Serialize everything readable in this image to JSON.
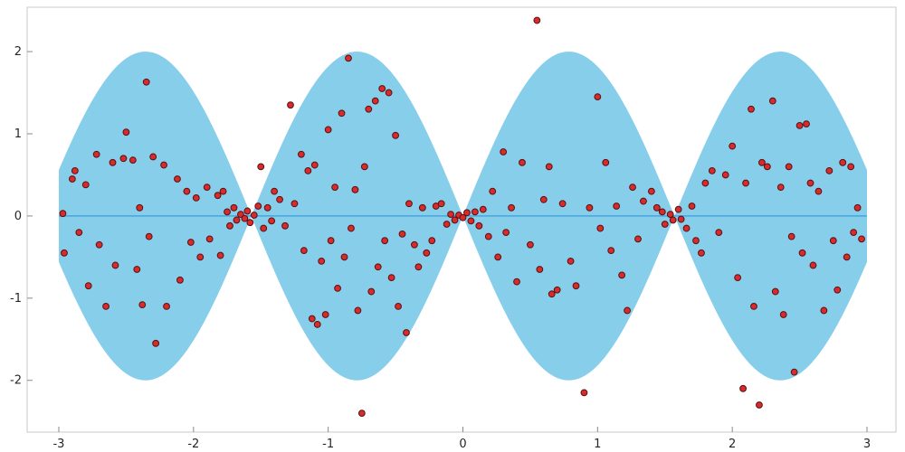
{
  "chart_data": {
    "type": "scatter",
    "title": "",
    "xlabel": "",
    "ylabel": "",
    "xlim": [
      -3.235,
      3.215
    ],
    "ylim": [
      -2.63,
      2.54
    ],
    "x_ticks": [
      "-3",
      "-2",
      "-1",
      "0",
      "1",
      "2",
      "3"
    ],
    "x_tick_values": [
      -3,
      -2,
      -1,
      0,
      1,
      2,
      3
    ],
    "y_ticks": [
      "-2",
      "-1",
      "0",
      "1",
      "2"
    ],
    "y_tick_values": [
      -2,
      -1,
      0,
      1,
      2
    ],
    "grid": false,
    "legend": "none",
    "ribbon": {
      "description": "filled band y = ±amplitude*|sin(frequency*x)| around y=0, x from -3 to 3",
      "amplitude": 2,
      "frequency": 2,
      "x_range": [
        -3,
        3
      ],
      "fill_color": "#87CEEB"
    },
    "center_line": {
      "y": 0,
      "x_range": [
        -3,
        3
      ],
      "color": "#47A4DE",
      "width": 1.5
    },
    "point_style": {
      "fill": "#D92B2B",
      "stroke": "#571111",
      "radius": 3.4
    },
    "frame_color": "#c9c9c9",
    "tick_color": "#8a8a8a",
    "points": [
      [
        -2.97,
        0.03
      ],
      [
        -2.96,
        -0.45
      ],
      [
        -2.9,
        0.45
      ],
      [
        -2.88,
        0.55
      ],
      [
        -2.85,
        -0.2
      ],
      [
        -2.8,
        0.38
      ],
      [
        -2.78,
        -0.85
      ],
      [
        -2.72,
        0.75
      ],
      [
        -2.7,
        -0.35
      ],
      [
        -2.65,
        -1.1
      ],
      [
        -2.6,
        0.65
      ],
      [
        -2.58,
        -0.6
      ],
      [
        -2.52,
        0.7
      ],
      [
        -2.5,
        1.02
      ],
      [
        -2.45,
        0.68
      ],
      [
        -2.42,
        -0.65
      ],
      [
        -2.4,
        0.1
      ],
      [
        -2.38,
        -1.08
      ],
      [
        -2.35,
        1.63
      ],
      [
        -2.33,
        -0.25
      ],
      [
        -2.3,
        0.72
      ],
      [
        -2.28,
        -1.55
      ],
      [
        -2.22,
        0.62
      ],
      [
        -2.2,
        -1.1
      ],
      [
        -2.12,
        0.45
      ],
      [
        -2.1,
        -0.78
      ],
      [
        -2.05,
        0.3
      ],
      [
        -2.02,
        -0.32
      ],
      [
        -1.98,
        0.22
      ],
      [
        -1.95,
        -0.5
      ],
      [
        -1.9,
        0.35
      ],
      [
        -1.88,
        -0.28
      ],
      [
        -1.82,
        0.25
      ],
      [
        -1.8,
        -0.48
      ],
      [
        -1.78,
        0.3
      ],
      [
        -1.75,
        0.05
      ],
      [
        -1.73,
        -0.12
      ],
      [
        -1.7,
        0.1
      ],
      [
        -1.68,
        -0.05
      ],
      [
        -1.65,
        0.02
      ],
      [
        -1.62,
        -0.03
      ],
      [
        -1.6,
        0.06
      ],
      [
        -1.58,
        -0.08
      ],
      [
        -1.55,
        0.01
      ],
      [
        -1.52,
        0.12
      ],
      [
        -1.5,
        0.6
      ],
      [
        -1.48,
        -0.15
      ],
      [
        -1.45,
        0.1
      ],
      [
        -1.42,
        -0.06
      ],
      [
        -1.4,
        0.3
      ],
      [
        -1.36,
        0.2
      ],
      [
        -1.32,
        -0.12
      ],
      [
        -1.28,
        1.35
      ],
      [
        -1.25,
        0.15
      ],
      [
        -1.2,
        0.75
      ],
      [
        -1.18,
        -0.42
      ],
      [
        -1.15,
        0.55
      ],
      [
        -1.12,
        -1.25
      ],
      [
        -1.1,
        0.62
      ],
      [
        -1.08,
        -1.32
      ],
      [
        -1.05,
        -0.55
      ],
      [
        -1.02,
        -1.2
      ],
      [
        -1.0,
        1.05
      ],
      [
        -0.98,
        -0.3
      ],
      [
        -0.95,
        0.35
      ],
      [
        -0.93,
        -0.88
      ],
      [
        -0.9,
        1.25
      ],
      [
        -0.88,
        -0.5
      ],
      [
        -0.85,
        1.92
      ],
      [
        -0.83,
        -0.15
      ],
      [
        -0.8,
        0.32
      ],
      [
        -0.78,
        -1.15
      ],
      [
        -0.75,
        -2.4
      ],
      [
        -0.73,
        0.6
      ],
      [
        -0.7,
        1.3
      ],
      [
        -0.68,
        -0.92
      ],
      [
        -0.65,
        1.4
      ],
      [
        -0.63,
        -0.62
      ],
      [
        -0.6,
        1.55
      ],
      [
        -0.58,
        -0.3
      ],
      [
        -0.55,
        1.5
      ],
      [
        -0.53,
        -0.75
      ],
      [
        -0.5,
        0.98
      ],
      [
        -0.48,
        -1.1
      ],
      [
        -0.45,
        -0.22
      ],
      [
        -0.42,
        -1.42
      ],
      [
        -0.4,
        0.15
      ],
      [
        -0.36,
        -0.35
      ],
      [
        -0.33,
        -0.62
      ],
      [
        -0.3,
        0.1
      ],
      [
        -0.27,
        -0.45
      ],
      [
        -0.23,
        -0.3
      ],
      [
        -0.2,
        0.12
      ],
      [
        -0.16,
        0.15
      ],
      [
        -0.12,
        -0.1
      ],
      [
        -0.09,
        0.02
      ],
      [
        -0.06,
        -0.05
      ],
      [
        -0.03,
        0.01
      ],
      [
        0.0,
        -0.02
      ],
      [
        0.03,
        0.04
      ],
      [
        0.06,
        -0.06
      ],
      [
        0.09,
        0.05
      ],
      [
        0.12,
        -0.12
      ],
      [
        0.15,
        0.08
      ],
      [
        0.19,
        -0.25
      ],
      [
        0.22,
        0.3
      ],
      [
        0.26,
        -0.5
      ],
      [
        0.3,
        0.78
      ],
      [
        0.32,
        -0.2
      ],
      [
        0.36,
        0.1
      ],
      [
        0.4,
        -0.8
      ],
      [
        0.44,
        0.65
      ],
      [
        0.5,
        -0.35
      ],
      [
        0.55,
        2.38
      ],
      [
        0.57,
        -0.65
      ],
      [
        0.6,
        0.2
      ],
      [
        0.64,
        0.6
      ],
      [
        0.66,
        -0.95
      ],
      [
        0.7,
        -0.9
      ],
      [
        0.74,
        0.15
      ],
      [
        0.8,
        -0.55
      ],
      [
        0.84,
        -0.85
      ],
      [
        0.9,
        -2.15
      ],
      [
        0.94,
        0.1
      ],
      [
        1.0,
        1.45
      ],
      [
        1.02,
        -0.15
      ],
      [
        1.06,
        0.65
      ],
      [
        1.1,
        -0.42
      ],
      [
        1.14,
        0.12
      ],
      [
        1.18,
        -0.72
      ],
      [
        1.22,
        -1.15
      ],
      [
        1.26,
        0.35
      ],
      [
        1.3,
        -0.28
      ],
      [
        1.34,
        0.18
      ],
      [
        1.4,
        0.3
      ],
      [
        1.44,
        0.1
      ],
      [
        1.48,
        0.05
      ],
      [
        1.5,
        -0.1
      ],
      [
        1.54,
        0.02
      ],
      [
        1.56,
        -0.05
      ],
      [
        1.6,
        0.08
      ],
      [
        1.62,
        -0.04
      ],
      [
        1.66,
        -0.15
      ],
      [
        1.7,
        0.12
      ],
      [
        1.73,
        -0.3
      ],
      [
        1.77,
        -0.45
      ],
      [
        1.8,
        0.4
      ],
      [
        1.85,
        0.55
      ],
      [
        1.9,
        -0.2
      ],
      [
        1.95,
        0.5
      ],
      [
        2.0,
        0.85
      ],
      [
        2.04,
        -0.75
      ],
      [
        2.08,
        -2.1
      ],
      [
        2.1,
        0.4
      ],
      [
        2.14,
        1.3
      ],
      [
        2.16,
        -1.1
      ],
      [
        2.2,
        -2.3
      ],
      [
        2.22,
        0.65
      ],
      [
        2.26,
        0.6
      ],
      [
        2.3,
        1.4
      ],
      [
        2.32,
        -0.92
      ],
      [
        2.36,
        0.35
      ],
      [
        2.38,
        -1.2
      ],
      [
        2.42,
        0.6
      ],
      [
        2.44,
        -0.25
      ],
      [
        2.46,
        -1.9
      ],
      [
        2.5,
        1.1
      ],
      [
        2.52,
        -0.45
      ],
      [
        2.55,
        1.12
      ],
      [
        2.58,
        0.4
      ],
      [
        2.6,
        -0.6
      ],
      [
        2.64,
        0.3
      ],
      [
        2.68,
        -1.15
      ],
      [
        2.72,
        0.55
      ],
      [
        2.75,
        -0.3
      ],
      [
        2.78,
        -0.9
      ],
      [
        2.82,
        0.65
      ],
      [
        2.85,
        -0.5
      ],
      [
        2.88,
        0.6
      ],
      [
        2.9,
        -0.2
      ],
      [
        2.93,
        0.1
      ],
      [
        2.96,
        -0.28
      ]
    ]
  }
}
